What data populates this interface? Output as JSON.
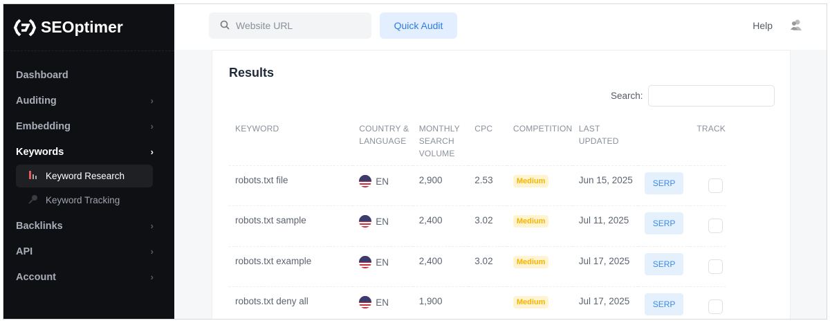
{
  "brand": "SEOptimer",
  "sidebar": {
    "items": [
      {
        "label": "Dashboard"
      },
      {
        "label": "Auditing"
      },
      {
        "label": "Embedding"
      },
      {
        "label": "Keywords"
      },
      {
        "label": "Backlinks"
      },
      {
        "label": "API"
      },
      {
        "label": "Account"
      }
    ],
    "sub": [
      {
        "label": "Keyword Research"
      },
      {
        "label": "Keyword Tracking"
      }
    ]
  },
  "topbar": {
    "search_placeholder": "Website URL",
    "audit_label": "Quick Audit",
    "help": "Help"
  },
  "main": {
    "title": "Results",
    "search_label": "Search:",
    "search_value": "",
    "headers": [
      "KEYWORD",
      "COUNTRY & LANGUAGE",
      "MONTHLY SEARCH VOLUME",
      "CPC",
      "COMPETITION",
      "LAST UPDATED",
      "",
      "TRACK"
    ],
    "rows": [
      {
        "keyword": "robots.txt file",
        "lang": "EN",
        "volume": "2,900",
        "cpc": "2.53",
        "competition": "Medium",
        "updated": "Jun 15, 2025",
        "serp": "SERP"
      },
      {
        "keyword": "robots.txt sample",
        "lang": "EN",
        "volume": "2,400",
        "cpc": "3.02",
        "competition": "Medium",
        "updated": "Jul 11, 2025",
        "serp": "SERP"
      },
      {
        "keyword": "robots.txt example",
        "lang": "EN",
        "volume": "2,400",
        "cpc": "3.02",
        "competition": "Medium",
        "updated": "Jul 17, 2025",
        "serp": "SERP"
      },
      {
        "keyword": "robots.txt deny all",
        "lang": "EN",
        "volume": "1,900",
        "cpc": "",
        "competition": "Medium",
        "updated": "Jul 17, 2025",
        "serp": "SERP"
      }
    ]
  }
}
